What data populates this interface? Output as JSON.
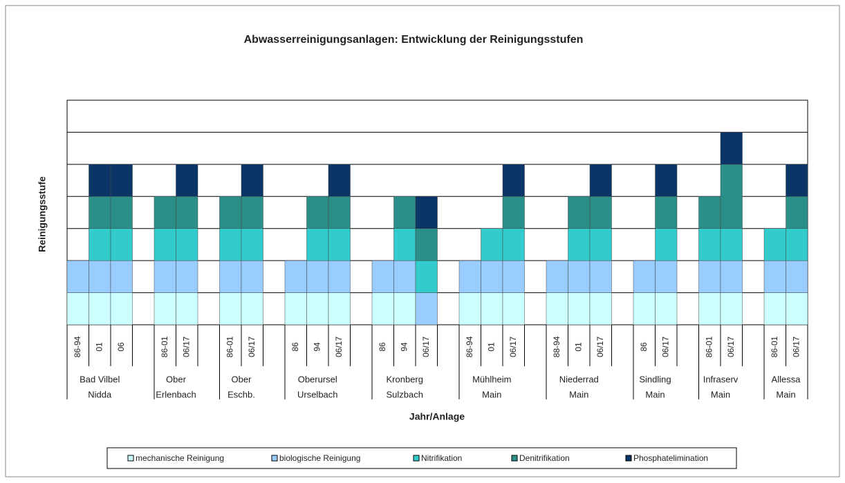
{
  "chart_data": {
    "type": "bar",
    "stacked": true,
    "title": "Abwasserreinigungsanlagen:  Entwicklung  der Reinigungsstufen",
    "x_label": "Jahr/Anlage",
    "y_label": "Reinigungsstufe",
    "ylim": [
      0,
      7
    ],
    "ygrid": [
      1,
      2,
      3,
      4,
      5,
      6,
      7
    ],
    "groups": [
      {
        "name": [
          "Bad Vilbel",
          "Nidda"
        ],
        "categories": [
          "86-94",
          "01",
          "06"
        ]
      },
      {
        "name": [
          "Ober",
          "Erlenbach"
        ],
        "categories": [
          "86-01",
          "06/17"
        ]
      },
      {
        "name": [
          "Ober",
          "Eschb."
        ],
        "categories": [
          "86-01",
          "06/17"
        ]
      },
      {
        "name": [
          "Oberursel",
          "Urselbach"
        ],
        "categories": [
          "86",
          "94",
          "06/17"
        ]
      },
      {
        "name": [
          "Kronberg",
          "Sulzbach"
        ],
        "categories": [
          "86",
          "94",
          "06/17"
        ]
      },
      {
        "name": [
          "Mühlheim",
          "Main"
        ],
        "categories": [
          "86-94",
          "01",
          "06/17"
        ]
      },
      {
        "name": [
          "Niederrad",
          "Main"
        ],
        "categories": [
          "88-94",
          "01",
          "06/17"
        ]
      },
      {
        "name": [
          "Sindling",
          "Main"
        ],
        "categories": [
          "86",
          "06/17"
        ]
      },
      {
        "name": [
          "Infraserv",
          "Main"
        ],
        "categories": [
          "86-01",
          "06/17"
        ]
      },
      {
        "name": [
          "Allessa",
          "Main"
        ],
        "categories": [
          "86-01",
          "06/17"
        ]
      }
    ],
    "series": [
      {
        "name": "mechanische Reinigung",
        "color": "#ccffff",
        "values": [
          1,
          1,
          1,
          1,
          1,
          1,
          1,
          1,
          1,
          1,
          1,
          1,
          0,
          1,
          1,
          1,
          1,
          1,
          1,
          1,
          1,
          1,
          1,
          1,
          1
        ]
      },
      {
        "name": "biologische Reinigung",
        "color": "#99ccff",
        "values": [
          1,
          1,
          1,
          1,
          1,
          1,
          1,
          1,
          1,
          1,
          1,
          1,
          1,
          1,
          1,
          1,
          1,
          1,
          1,
          1,
          1,
          1,
          1,
          1,
          1
        ]
      },
      {
        "name": "Nitrifikation",
        "color": "#33cccc",
        "values": [
          0,
          1,
          1,
          1,
          1,
          1,
          1,
          0,
          1,
          1,
          0,
          1,
          1,
          0,
          1,
          1,
          0,
          1,
          1,
          0,
          1,
          1,
          1,
          1,
          1
        ]
      },
      {
        "name": "Denitrifikation",
        "color": "#2a8f88",
        "values": [
          0,
          1,
          1,
          1,
          1,
          1,
          1,
          0,
          1,
          1,
          0,
          1,
          1,
          0,
          0,
          1,
          0,
          1,
          1,
          0,
          1,
          1,
          2,
          0,
          1
        ]
      },
      {
        "name": "Phosphatelimination",
        "color": "#0b3566",
        "values": [
          0,
          1,
          1,
          0,
          1,
          0,
          1,
          0,
          0,
          1,
          0,
          0,
          1,
          0,
          0,
          1,
          0,
          0,
          1,
          0,
          1,
          0,
          1,
          0,
          1
        ]
      }
    ]
  }
}
